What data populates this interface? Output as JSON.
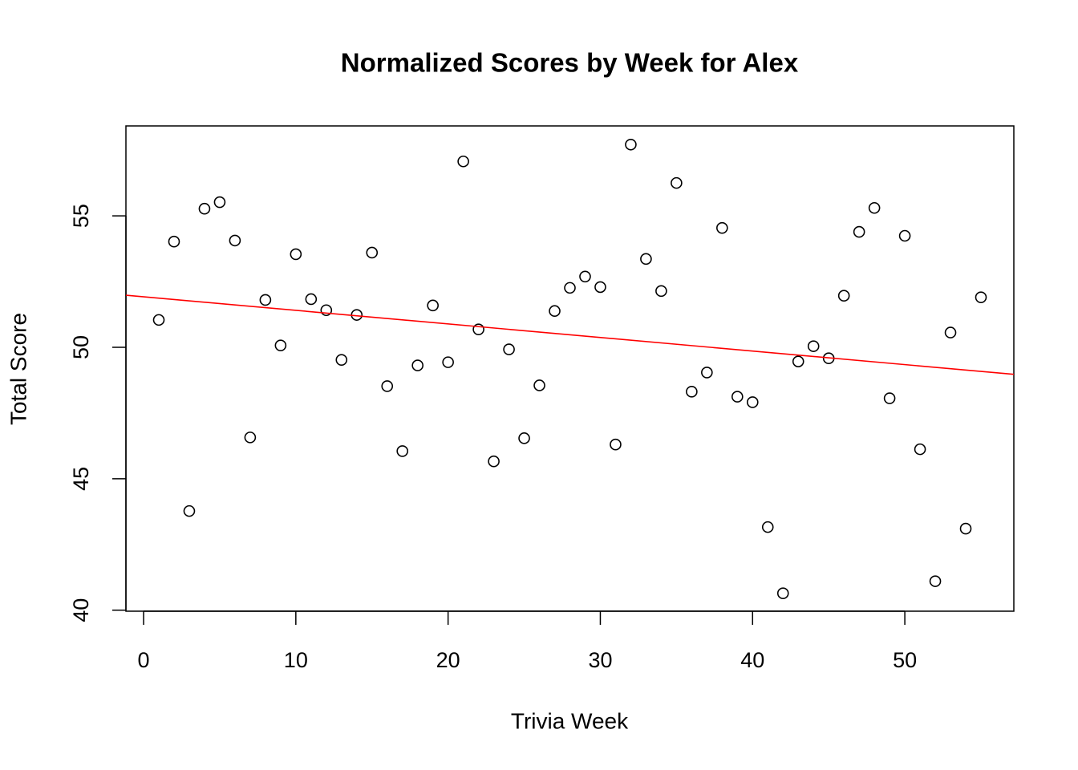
{
  "chart_data": {
    "type": "scatter",
    "title": "Normalized Scores by Week for Alex",
    "x_label": "Trivia Week",
    "y_label": "Total Score",
    "x": [
      1,
      2,
      3,
      4,
      5,
      6,
      7,
      8,
      9,
      10,
      11,
      12,
      13,
      14,
      15,
      16,
      17,
      18,
      19,
      20,
      21,
      22,
      23,
      24,
      25,
      26,
      27,
      28,
      29,
      30,
      31,
      32,
      33,
      34,
      35,
      36,
      37,
      38,
      39,
      40,
      41,
      42,
      43,
      44,
      45,
      46,
      47,
      48,
      49,
      50,
      51,
      52,
      53,
      54,
      55
    ],
    "y": [
      51.04,
      54.02,
      43.77,
      55.27,
      55.52,
      54.06,
      46.57,
      51.8,
      50.07,
      53.54,
      51.83,
      51.41,
      49.52,
      51.23,
      53.6,
      48.52,
      46.05,
      49.31,
      51.59,
      49.43,
      57.07,
      50.68,
      45.66,
      49.92,
      46.54,
      48.55,
      51.38,
      52.26,
      52.69,
      52.29,
      46.3,
      57.71,
      53.36,
      52.14,
      56.25,
      48.31,
      49.04,
      54.54,
      48.12,
      47.91,
      43.16,
      40.64,
      49.46,
      50.04,
      49.58,
      51.96,
      54.39,
      55.3,
      48.06,
      54.24,
      46.12,
      41.1,
      50.56,
      43.1,
      51.9
    ],
    "color": "#000000",
    "xlim": [
      -1.16,
      57.16
    ],
    "ylim": [
      39.96,
      58.42
    ],
    "xticks": [
      0,
      10,
      20,
      30,
      40,
      50
    ],
    "yticks": [
      40,
      45,
      50,
      55
    ],
    "trend_line": {
      "intercept": 51.92,
      "slope": -0.0516,
      "color": "#ff0000"
    }
  }
}
